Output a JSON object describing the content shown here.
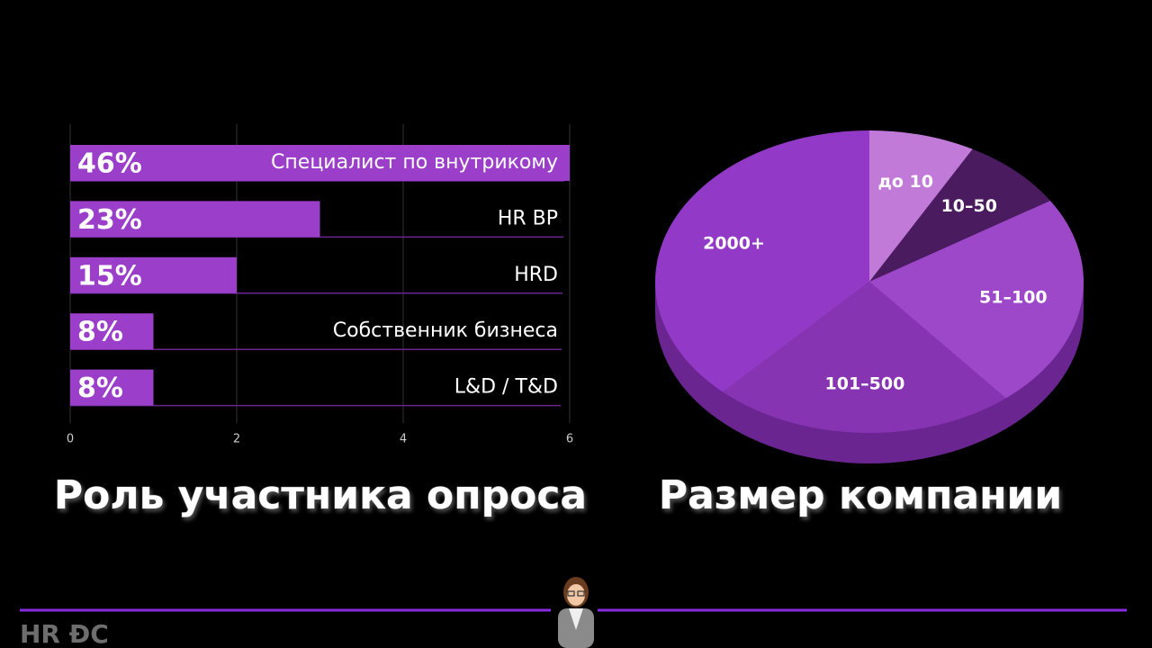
{
  "chart_data": [
    {
      "type": "bar",
      "orientation": "horizontal",
      "title": "Роль участника опроса",
      "categories": [
        "Специалист по внутрикому",
        "HR BP",
        "HRD",
        "Собственник бизнеса",
        "L&D / T&D"
      ],
      "values": [
        6,
        3,
        2,
        1,
        1
      ],
      "bar_texts": [
        "46%",
        "23%",
        "15%",
        "8%",
        "8%"
      ],
      "xlim": [
        0,
        6
      ],
      "xticks": [
        0,
        2,
        4,
        6
      ],
      "grid": true,
      "color": "#9b3fcb"
    },
    {
      "type": "pie",
      "title": "Размер компании",
      "categories": [
        "до 10",
        "10–50",
        "51–100",
        "101–500",
        "2000+"
      ],
      "values": [
        8,
        8,
        23,
        23,
        38
      ],
      "colors": [
        "#c27ad8",
        "#4b1b60",
        "#9c48c9",
        "#8734b3",
        "#9339c7"
      ]
    }
  ],
  "footer": {
    "logo": "HR ĐC"
  }
}
